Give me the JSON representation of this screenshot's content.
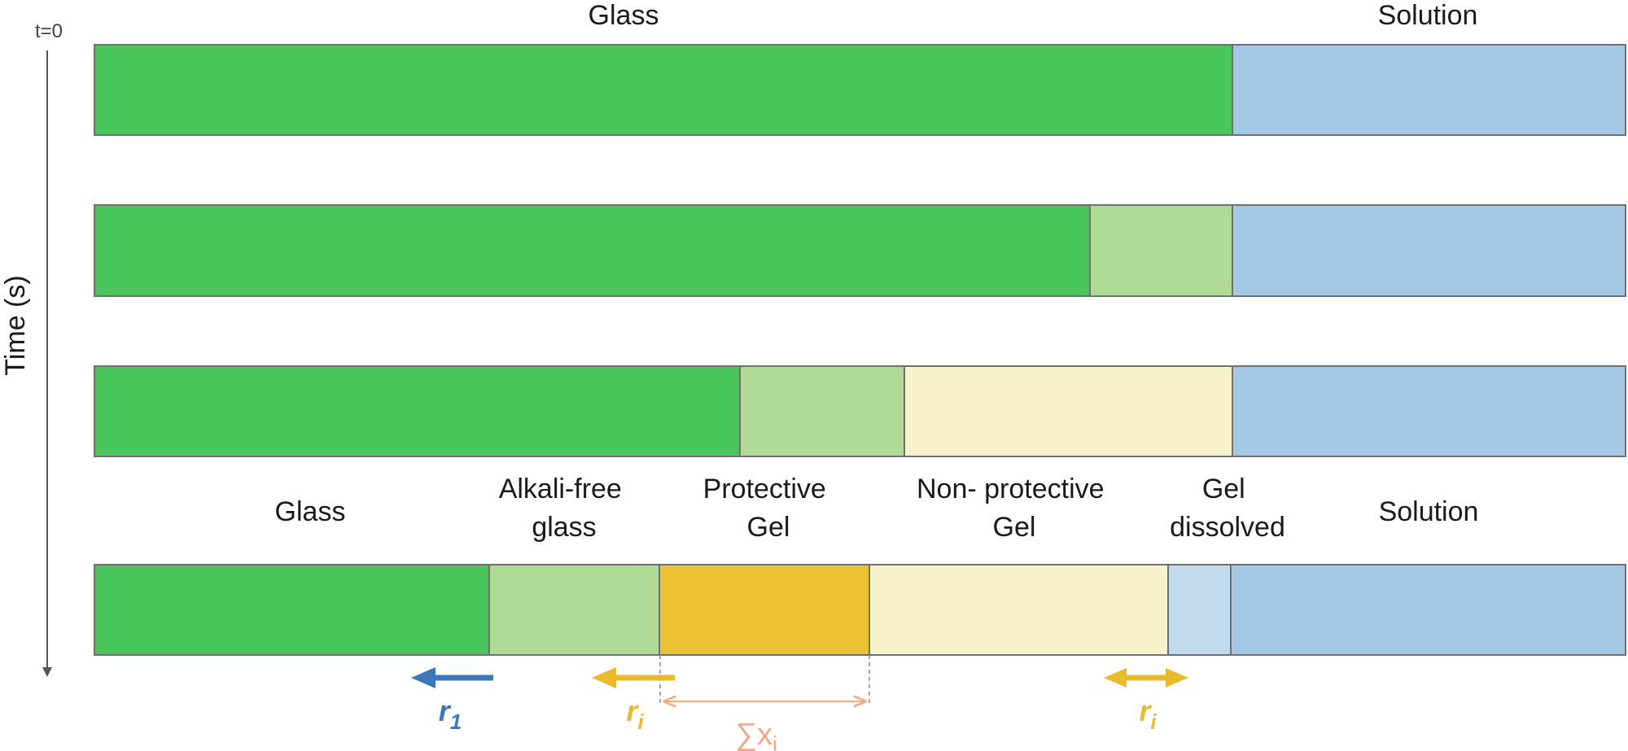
{
  "time_axis": {
    "label": "Time (s)",
    "start_label": "t=0"
  },
  "top_labels": {
    "glass": "Glass",
    "solution": "Solution"
  },
  "bottom_labels": {
    "glass": "Glass",
    "alkali_free": [
      "Alkali-free",
      "glass"
    ],
    "protective_gel": [
      "Protective",
      "Gel"
    ],
    "non_protective_gel": [
      "Non- protective",
      "Gel"
    ],
    "gel_dissolved": [
      "Gel",
      "dissolved"
    ],
    "solution": "Solution"
  },
  "rates": {
    "r1": {
      "base": "r",
      "sub": "1"
    },
    "ri_left": {
      "base": "r",
      "sub": "i"
    },
    "ri_right": {
      "base": "r",
      "sub": "i"
    },
    "sum_x": {
      "symbol": "∑x",
      "sub": "i"
    }
  },
  "colors": {
    "glass": "#49c55c",
    "alkali_free_glass": "#afdb94",
    "protective_gel": "#ebc232",
    "non_protective_gel": "#f7f4cc",
    "gel_dissolved": "#c0dbee",
    "solution": "#a4c8e6",
    "outline": "#707070",
    "r1_arrow": "#3b78b9",
    "ri_arrow": "#e8ba2c",
    "sum_arrow": "#f2ab85"
  }
}
